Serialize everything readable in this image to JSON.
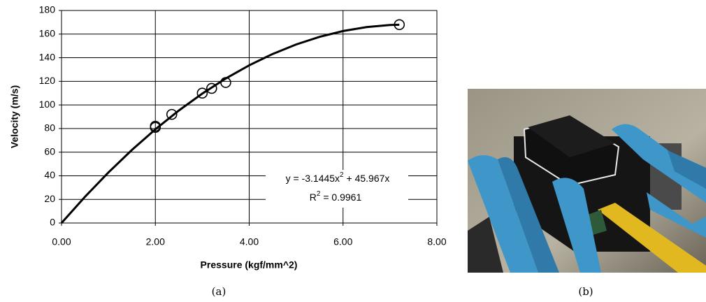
{
  "chart_data": {
    "type": "scatter",
    "x": [
      2.0,
      2.0,
      2.35,
      3.0,
      3.2,
      3.5,
      7.2
    ],
    "values": [
      82,
      81,
      92,
      110,
      114,
      119,
      168
    ],
    "color": "#000000",
    "xlim": [
      0,
      8
    ],
    "xticks": [
      {
        "value": 0,
        "label": "0.00"
      },
      {
        "value": 2,
        "label": "2.00"
      },
      {
        "value": 4,
        "label": "4.00"
      },
      {
        "value": 6,
        "label": "6.00"
      },
      {
        "value": 8,
        "label": "8.00"
      }
    ],
    "ylim": [
      0,
      180
    ],
    "yticks": [
      0,
      20,
      40,
      60,
      80,
      100,
      120,
      140,
      160,
      180
    ],
    "grid": true,
    "xlabel": "Pressure (kgf/mm^2)",
    "ylabel": "Velocity (m/s)",
    "trendline": {
      "x": [
        0,
        0.5,
        1,
        1.5,
        2,
        2.5,
        3,
        3.5,
        4,
        4.5,
        5,
        5.5,
        6,
        6.5,
        7,
        7.2
      ],
      "values": [
        0,
        22.2,
        42.82,
        61.88,
        79.36,
        95.26,
        109.6,
        122.36,
        133.56,
        143.17,
        151.22,
        157.7,
        162.6,
        165.94,
        167.69,
        167.95
      ],
      "equation": [
        "y = -3.1445x",
        "2",
        " + 45.967x"
      ],
      "r_squared": [
        "R",
        "2",
        " = 0.9961"
      ]
    }
  },
  "captions": [
    "(a)",
    "(b)"
  ]
}
